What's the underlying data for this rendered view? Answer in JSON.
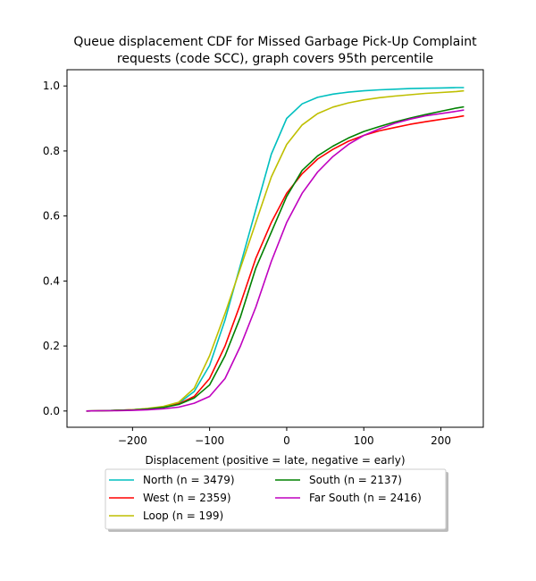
{
  "chart_data": {
    "type": "line",
    "title_lines": [
      "Queue displacement CDF for Missed Garbage Pick-Up Complaint",
      "requests (code SCC), graph covers 95th percentile"
    ],
    "xlabel": "Displacement (positive = late, negative = early)",
    "ylabel": "",
    "xlim": [
      -285,
      255
    ],
    "ylim": [
      -0.05,
      1.05
    ],
    "x_ticks": [
      -200,
      -100,
      0,
      100,
      200
    ],
    "y_ticks": [
      0.0,
      0.2,
      0.4,
      0.6,
      0.8,
      1.0
    ],
    "x_tick_labels": [
      "−200",
      "−100",
      "0",
      "100",
      "200"
    ],
    "y_tick_labels": [
      "0.0",
      "0.2",
      "0.4",
      "0.6",
      "0.8",
      "1.0"
    ],
    "grid": false,
    "legend_placement": "below the axes, two columns, with drop shadow",
    "x": [
      -260,
      -240,
      -220,
      -200,
      -180,
      -160,
      -140,
      -120,
      -100,
      -80,
      -60,
      -40,
      -20,
      0,
      20,
      40,
      60,
      80,
      100,
      120,
      140,
      160,
      180,
      200,
      220,
      230
    ],
    "series": [
      {
        "name": "North (n = 3479)",
        "color": "#00bfbf",
        "values": [
          0.0,
          0.001,
          0.002,
          0.004,
          0.007,
          0.013,
          0.024,
          0.06,
          0.14,
          0.28,
          0.45,
          0.62,
          0.79,
          0.9,
          0.945,
          0.965,
          0.975,
          0.981,
          0.985,
          0.988,
          0.99,
          0.992,
          0.993,
          0.994,
          0.995,
          0.995
        ]
      },
      {
        "name": "West (n = 2359)",
        "color": "#ff0000",
        "values": [
          0.0,
          0.001,
          0.002,
          0.004,
          0.007,
          0.012,
          0.022,
          0.045,
          0.1,
          0.2,
          0.33,
          0.47,
          0.58,
          0.67,
          0.73,
          0.775,
          0.805,
          0.83,
          0.848,
          0.862,
          0.872,
          0.882,
          0.89,
          0.897,
          0.904,
          0.908
        ]
      },
      {
        "name": "Loop (n = 199)",
        "color": "#bfbf00",
        "values": [
          0.0,
          0.001,
          0.002,
          0.004,
          0.008,
          0.014,
          0.027,
          0.07,
          0.17,
          0.3,
          0.44,
          0.58,
          0.72,
          0.82,
          0.88,
          0.915,
          0.935,
          0.948,
          0.957,
          0.964,
          0.969,
          0.973,
          0.977,
          0.98,
          0.983,
          0.985
        ]
      },
      {
        "name": "South (n = 2137)",
        "color": "#008000",
        "values": [
          0.0,
          0.001,
          0.002,
          0.003,
          0.006,
          0.011,
          0.02,
          0.04,
          0.08,
          0.17,
          0.29,
          0.44,
          0.55,
          0.66,
          0.74,
          0.785,
          0.815,
          0.84,
          0.86,
          0.875,
          0.889,
          0.901,
          0.912,
          0.922,
          0.932,
          0.936
        ]
      },
      {
        "name": "Far South (n = 2416)",
        "color": "#bf00bf",
        "values": [
          0.0,
          0.001,
          0.001,
          0.002,
          0.004,
          0.007,
          0.012,
          0.024,
          0.045,
          0.1,
          0.2,
          0.32,
          0.46,
          0.58,
          0.67,
          0.735,
          0.783,
          0.82,
          0.848,
          0.868,
          0.885,
          0.898,
          0.908,
          0.915,
          0.922,
          0.926
        ]
      }
    ]
  }
}
